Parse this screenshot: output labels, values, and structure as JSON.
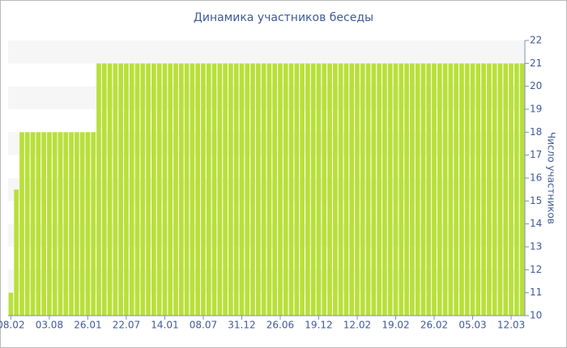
{
  "chart_data": {
    "type": "bar",
    "title": "Динамика участников беседы",
    "y_axis_label": "Число участников",
    "categories": [
      "08.02",
      null,
      null,
      null,
      null,
      null,
      null,
      "03.08",
      null,
      null,
      null,
      null,
      null,
      null,
      "26.01",
      null,
      null,
      null,
      null,
      null,
      null,
      "22.07",
      null,
      null,
      null,
      null,
      null,
      null,
      "14.01",
      null,
      null,
      null,
      null,
      null,
      null,
      "08.07",
      null,
      null,
      null,
      null,
      null,
      null,
      "31.12",
      null,
      null,
      null,
      null,
      null,
      null,
      "26.06",
      null,
      null,
      null,
      null,
      null,
      null,
      "19.12",
      null,
      null,
      null,
      null,
      null,
      null,
      "12.02",
      null,
      null,
      null,
      null,
      null,
      null,
      "19.02",
      null,
      null,
      null,
      null,
      null,
      null,
      "26.02",
      null,
      null,
      null,
      null,
      null,
      null,
      "05.03",
      null,
      null,
      null,
      null,
      null,
      null,
      "12.03",
      null,
      null
    ],
    "values": [
      11,
      15.5,
      18,
      18,
      18,
      18,
      18,
      18,
      18,
      18,
      18,
      18,
      18,
      18,
      18,
      18,
      21,
      21,
      21,
      21,
      21,
      21,
      21,
      21,
      21,
      21,
      21,
      21,
      21,
      21,
      21,
      21,
      21,
      21,
      21,
      21,
      21,
      21,
      21,
      21,
      21,
      21,
      21,
      21,
      21,
      21,
      21,
      21,
      21,
      21,
      21,
      21,
      21,
      21,
      21,
      21,
      21,
      21,
      21,
      21,
      21,
      21,
      21,
      21,
      21,
      21,
      21,
      21,
      21,
      21,
      21,
      21,
      21,
      21,
      21,
      21,
      21,
      21,
      21,
      21,
      21,
      21,
      21,
      21,
      21,
      21,
      21,
      21,
      21,
      21,
      21,
      21,
      21,
      21
    ],
    "color": "#b8e03a",
    "ylim": [
      10,
      22
    ],
    "yticks": [
      10,
      11,
      12,
      13,
      14,
      15,
      16,
      17,
      18,
      19,
      20,
      21,
      22
    ],
    "grid": "bands",
    "y_axis_side": "right"
  }
}
